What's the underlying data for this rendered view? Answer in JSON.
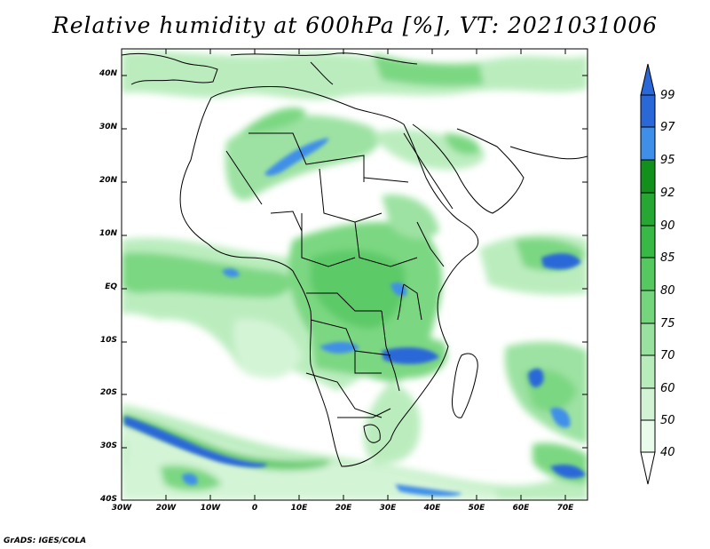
{
  "title": "Relative humidity at 600hPa [%], VT: 2021031006",
  "credit": "GrADS: IGES/COLA",
  "map": {
    "lat_ticks": [
      "40N",
      "30N",
      "20N",
      "10N",
      "EQ",
      "10S",
      "20S",
      "30S",
      "40S"
    ],
    "lon_ticks": [
      "30W",
      "20W",
      "10W",
      "0",
      "10E",
      "20E",
      "30E",
      "40E",
      "50E",
      "60E",
      "70E"
    ]
  },
  "colorbar": {
    "labels": [
      "99",
      "97",
      "95",
      "92",
      "90",
      "85",
      "80",
      "75",
      "70",
      "60",
      "50",
      "40"
    ],
    "colors": {
      "99": "#2a68d8",
      "97": "#3f8fe8",
      "95": "#11901c",
      "92": "#26a633",
      "90": "#38b845",
      "85": "#55c860",
      "80": "#74d57c",
      "75": "#98e19e",
      "70": "#b8ecbb",
      "60": "#d2f4d4",
      "50": "#e9fbea",
      "40": "#ffffff"
    }
  }
}
